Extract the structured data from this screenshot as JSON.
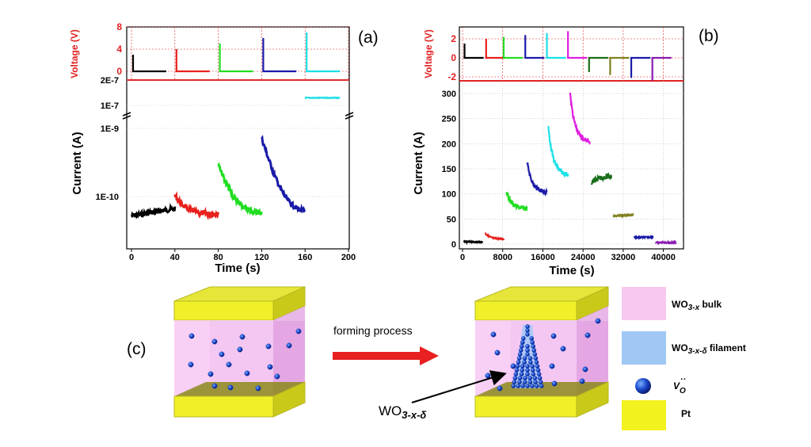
{
  "chart_data": [
    {
      "panel": "(a)",
      "type": "line",
      "xlabel": "Time (s)",
      "x_ticks": [
        "0",
        "40",
        "80",
        "120",
        "160",
        "200"
      ],
      "xlim": [
        0,
        200
      ],
      "voltage": {
        "ylabel": "Voltage (V)",
        "y_ticks": [
          "0",
          "4",
          "8"
        ],
        "ylim": [
          0,
          8
        ],
        "pulses": [
          {
            "t": 0,
            "v": 3,
            "color": "#000000"
          },
          {
            "t": 40,
            "v": 4,
            "color": "#e8211d"
          },
          {
            "t": 80,
            "v": 5,
            "color": "#22dd22"
          },
          {
            "t": 120,
            "v": 6,
            "color": "#1a1aa8"
          },
          {
            "t": 160,
            "v": 7,
            "color": "#19e0e8"
          }
        ]
      },
      "current": {
        "ylabel": "Current (A)",
        "y_ticks_upper": [
          "2E-7",
          "1E-7"
        ],
        "y_ticks_lower": [
          "1E-9",
          "1E-10"
        ],
        "series": [
          {
            "t_start": 0,
            "t_end": 40,
            "start": 5.2e-11,
            "end": 6.6e-11,
            "color": "#000000"
          },
          {
            "t_start": 40,
            "t_end": 80,
            "start": 1.05e-10,
            "end": 5.5e-11,
            "color": "#e8211d"
          },
          {
            "t_start": 80,
            "t_end": 120,
            "start": 3.1e-10,
            "end": 5.6e-11,
            "color": "#22dd22"
          },
          {
            "t_start": 120,
            "t_end": 160,
            "start": 7.2e-10,
            "end": 5.6e-11,
            "color": "#1a1aa8"
          },
          {
            "t_start": 160,
            "t_end": 192,
            "start": 1.35e-07,
            "end": 1.35e-07,
            "color": "#19e0e8"
          }
        ]
      }
    },
    {
      "panel": "(b)",
      "type": "line",
      "xlabel": "Time (s)",
      "x_ticks": [
        "0",
        "8000",
        "16000",
        "24000",
        "32000",
        "40000"
      ],
      "xlim": [
        0,
        44000
      ],
      "voltage": {
        "ylabel": "Voltage (V)",
        "y_ticks": [
          "-2",
          "0",
          "2"
        ],
        "ylim": [
          -3,
          3
        ],
        "pulses": [
          {
            "t": 400,
            "v": 1.5,
            "color": "#000000"
          },
          {
            "t": 4700,
            "v": 2,
            "color": "#e8211d"
          },
          {
            "t": 8200,
            "v": 2.2,
            "color": "#22dd22"
          },
          {
            "t": 12500,
            "v": 2.4,
            "color": "#1a1aa8"
          },
          {
            "t": 16800,
            "v": 2.6,
            "color": "#19e0e8"
          },
          {
            "t": 21000,
            "v": 2.8,
            "color": "#e01ee0"
          },
          {
            "t": 25200,
            "v": -1.5,
            "color": "#1a6e1a"
          },
          {
            "t": 29400,
            "v": -1.8,
            "color": "#808020"
          },
          {
            "t": 33600,
            "v": -2.1,
            "color": "#1a1aa8"
          },
          {
            "t": 37800,
            "v": -2.4,
            "color": "#8a1ab0"
          }
        ]
      },
      "current": {
        "ylabel": "Current (A)",
        "y_ticks": [
          "0",
          "50",
          "100",
          "150",
          "200",
          "250",
          "300"
        ],
        "ylim": [
          0,
          320
        ],
        "series": [
          {
            "t_start": 200,
            "t_end": 4000,
            "start": 5,
            "end": 4,
            "color": "#000000"
          },
          {
            "t_start": 4500,
            "t_end": 8300,
            "start": 22,
            "end": 10,
            "color": "#e8211d"
          },
          {
            "t_start": 8700,
            "t_end": 12800,
            "start": 107,
            "end": 70,
            "color": "#22dd22"
          },
          {
            "t_start": 12900,
            "t_end": 16800,
            "start": 162,
            "end": 103,
            "color": "#1a1aa8"
          },
          {
            "t_start": 17100,
            "t_end": 21000,
            "start": 232,
            "end": 137,
            "color": "#19e0e8"
          },
          {
            "t_start": 21400,
            "t_end": 25400,
            "start": 302,
            "end": 203,
            "color": "#e01ee0"
          },
          {
            "t_start": 25700,
            "t_end": 29700,
            "start": 122,
            "end": 136,
            "color": "#1a6e1a"
          },
          {
            "t_start": 30000,
            "t_end": 34000,
            "start": 55,
            "end": 58,
            "color": "#808020"
          },
          {
            "t_start": 34200,
            "t_end": 38000,
            "start": 13,
            "end": 14,
            "color": "#1a1aa8"
          },
          {
            "t_start": 38400,
            "t_end": 42500,
            "start": 3,
            "end": 3,
            "color": "#8a1ab0"
          }
        ]
      }
    }
  ],
  "labels": {
    "panel_a": "(a)",
    "panel_b": "(b)",
    "panel_c": "(c)",
    "arrow_text": "forming process",
    "filament_label_base": "WO",
    "filament_label_sub": "3-x-δ"
  },
  "legend": [
    {
      "id": "bulk",
      "base": "WO",
      "sub": "3-x",
      "rest": " bulk",
      "color": "#f7c8f0"
    },
    {
      "id": "filament",
      "base": "WO",
      "sub": "3-x-δ",
      "rest": " filament",
      "color": "#9fc8f5"
    },
    {
      "id": "vacancy",
      "base": "V",
      "sub": "O",
      "sup": "··",
      "rest": "",
      "color": "#1a3fb8"
    },
    {
      "id": "pt",
      "base": "Pt",
      "sub": "",
      "rest": "",
      "color": "#f2f21e"
    }
  ]
}
